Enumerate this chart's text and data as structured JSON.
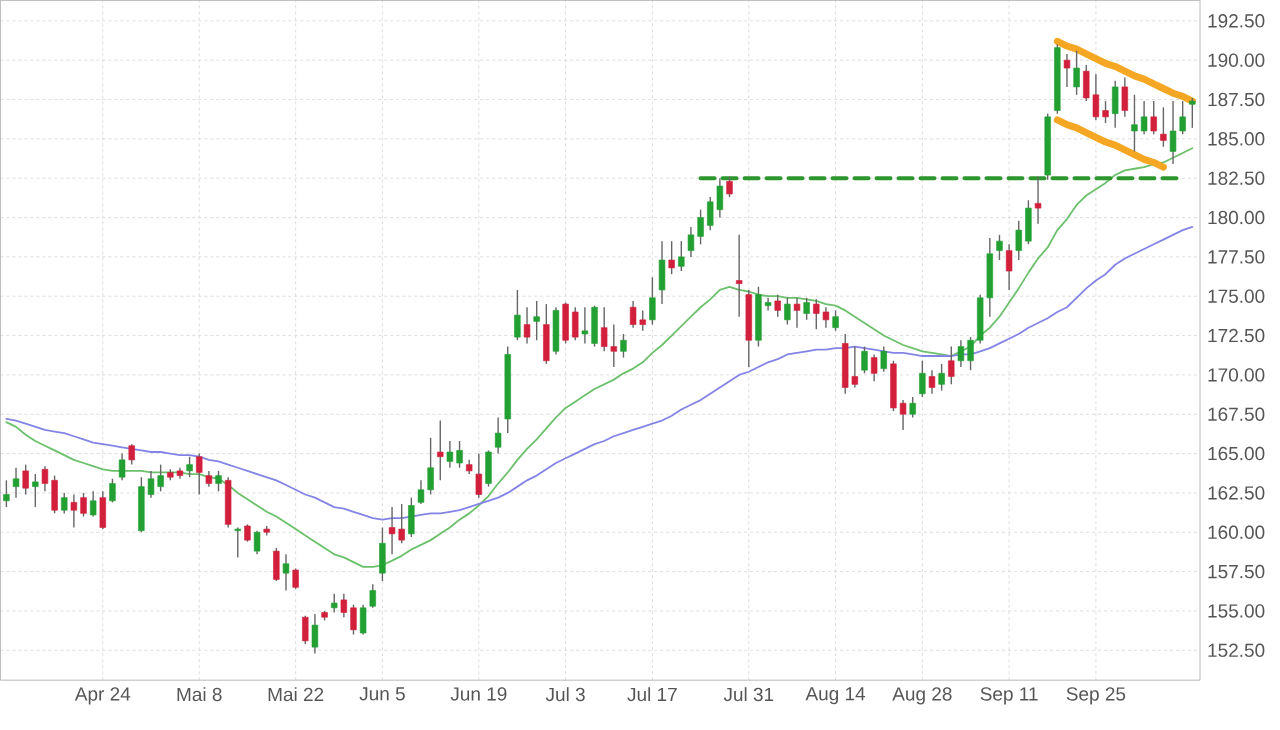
{
  "chart_data": {
    "type": "candlestick",
    "categories": [
      null,
      null,
      null,
      null,
      null,
      null,
      null,
      null,
      null,
      null,
      "Apr 24",
      null,
      null,
      null,
      null,
      null,
      null,
      null,
      null,
      null,
      "Mai 8",
      null,
      null,
      null,
      null,
      null,
      null,
      null,
      null,
      null,
      "Mai 22",
      null,
      null,
      null,
      null,
      null,
      null,
      null,
      null,
      "Jun 5",
      null,
      null,
      null,
      null,
      null,
      null,
      null,
      null,
      null,
      "Jun 19",
      null,
      null,
      null,
      null,
      null,
      null,
      null,
      null,
      "Jul 3",
      null,
      null,
      null,
      null,
      null,
      null,
      null,
      null,
      "Jul 17",
      null,
      null,
      null,
      null,
      null,
      null,
      null,
      null,
      null,
      "Jul 31",
      null,
      null,
      null,
      null,
      null,
      null,
      null,
      null,
      "Aug 14",
      null,
      null,
      null,
      null,
      null,
      null,
      null,
      null,
      "Aug 28",
      null,
      null,
      null,
      null,
      null,
      null,
      null,
      null,
      "Sep 11",
      null,
      null,
      null,
      null,
      null,
      null,
      null,
      null,
      "Sep 25",
      null,
      null,
      null,
      null,
      null,
      null,
      null,
      null,
      null,
      null
    ],
    "ohlc": [
      [
        162.0,
        163.3,
        161.6,
        162.4
      ],
      [
        162.9,
        164.1,
        162.2,
        163.4
      ],
      [
        163.9,
        164.3,
        162.4,
        162.8
      ],
      [
        162.9,
        163.7,
        161.6,
        163.2
      ],
      [
        164.0,
        164.2,
        162.6,
        163.1
      ],
      [
        163.3,
        163.6,
        161.2,
        161.4
      ],
      [
        161.4,
        162.5,
        161.2,
        162.2
      ],
      [
        161.9,
        162.4,
        160.3,
        161.4
      ],
      [
        162.2,
        162.5,
        161.0,
        161.2
      ],
      [
        161.1,
        162.6,
        161.0,
        162.0
      ],
      [
        162.2,
        162.6,
        160.2,
        160.3
      ],
      [
        162.0,
        163.4,
        161.9,
        163.1
      ],
      [
        163.5,
        165.0,
        163.3,
        164.6
      ],
      [
        165.5,
        165.6,
        164.3,
        164.6
      ],
      [
        160.1,
        163.5,
        160.0,
        162.9
      ],
      [
        162.4,
        163.9,
        162.2,
        163.4
      ],
      [
        162.9,
        164.3,
        162.6,
        163.6
      ],
      [
        163.8,
        164.0,
        163.3,
        163.5
      ],
      [
        163.9,
        164.1,
        163.4,
        163.6
      ],
      [
        163.9,
        164.8,
        163.5,
        164.3
      ],
      [
        164.8,
        165.0,
        162.4,
        163.8
      ],
      [
        163.6,
        163.9,
        162.9,
        163.1
      ],
      [
        163.1,
        163.9,
        162.6,
        163.6
      ],
      [
        163.3,
        163.5,
        160.3,
        160.5
      ],
      [
        160.1,
        160.3,
        158.4,
        160.2
      ],
      [
        160.4,
        160.5,
        159.4,
        159.5
      ],
      [
        158.8,
        160.1,
        158.6,
        160.0
      ],
      [
        160.2,
        160.4,
        159.8,
        160.0
      ],
      [
        158.8,
        159.0,
        156.9,
        157.0
      ],
      [
        157.4,
        158.6,
        156.3,
        158.0
      ],
      [
        157.6,
        157.7,
        156.4,
        156.5
      ],
      [
        154.6,
        154.7,
        152.9,
        153.1
      ],
      [
        152.7,
        154.8,
        152.3,
        154.1
      ],
      [
        154.9,
        155.0,
        154.4,
        154.6
      ],
      [
        155.2,
        156.1,
        154.9,
        155.5
      ],
      [
        155.7,
        156.1,
        154.6,
        154.9
      ],
      [
        155.2,
        155.4,
        153.5,
        153.8
      ],
      [
        153.6,
        155.4,
        153.5,
        155.2
      ],
      [
        155.3,
        156.7,
        155.2,
        156.3
      ],
      [
        157.4,
        160.3,
        156.9,
        159.3
      ],
      [
        160.3,
        161.6,
        158.6,
        159.9
      ],
      [
        160.2,
        161.8,
        159.3,
        159.5
      ],
      [
        159.9,
        162.2,
        159.7,
        161.7
      ],
      [
        161.9,
        163.3,
        161.8,
        162.7
      ],
      [
        162.7,
        166.0,
        162.4,
        164.1
      ],
      [
        165.1,
        167.1,
        163.3,
        164.8
      ],
      [
        164.5,
        165.8,
        164.1,
        165.1
      ],
      [
        164.4,
        165.8,
        164.1,
        165.2
      ],
      [
        164.3,
        164.6,
        163.7,
        163.9
      ],
      [
        163.7,
        165.0,
        162.2,
        162.4
      ],
      [
        163.1,
        165.2,
        162.9,
        165.1
      ],
      [
        165.4,
        167.3,
        165.0,
        166.3
      ],
      [
        167.2,
        171.8,
        166.3,
        171.3
      ],
      [
        172.4,
        175.4,
        172.2,
        173.8
      ],
      [
        173.2,
        174.3,
        172.0,
        172.4
      ],
      [
        173.4,
        174.7,
        172.2,
        173.7
      ],
      [
        173.2,
        174.5,
        170.7,
        170.9
      ],
      [
        171.5,
        174.3,
        171.3,
        174.1
      ],
      [
        174.5,
        174.6,
        172.0,
        172.2
      ],
      [
        174.0,
        174.3,
        172.2,
        172.4
      ],
      [
        172.6,
        174.3,
        172.0,
        172.8
      ],
      [
        172.0,
        174.4,
        171.8,
        174.3
      ],
      [
        173.0,
        174.3,
        171.5,
        171.8
      ],
      [
        171.8,
        173.2,
        170.5,
        171.5
      ],
      [
        171.5,
        172.6,
        171.1,
        172.2
      ],
      [
        174.3,
        174.7,
        173.0,
        173.2
      ],
      [
        173.5,
        174.1,
        172.8,
        173.2
      ],
      [
        173.5,
        176.2,
        173.2,
        174.9
      ],
      [
        175.4,
        178.5,
        174.5,
        177.3
      ],
      [
        177.3,
        178.5,
        176.4,
        176.8
      ],
      [
        176.9,
        178.5,
        176.6,
        177.5
      ],
      [
        177.9,
        179.4,
        177.5,
        178.9
      ],
      [
        178.8,
        180.5,
        178.3,
        180.0
      ],
      [
        179.5,
        181.3,
        179.2,
        181.0
      ],
      [
        180.5,
        182.5,
        180.0,
        182.0
      ],
      [
        182.3,
        182.6,
        181.3,
        181.5
      ],
      [
        176.0,
        178.9,
        173.7,
        175.8
      ],
      [
        175.1,
        175.4,
        170.5,
        172.2
      ],
      [
        172.2,
        175.6,
        171.8,
        175.1
      ],
      [
        174.4,
        174.9,
        174.1,
        174.6
      ],
      [
        174.7,
        175.1,
        173.7,
        174.1
      ],
      [
        173.5,
        174.9,
        173.2,
        174.5
      ],
      [
        174.5,
        174.9,
        173.0,
        174.1
      ],
      [
        173.9,
        174.9,
        173.5,
        174.6
      ],
      [
        174.5,
        174.8,
        172.9,
        173.9
      ],
      [
        174.0,
        174.3,
        173.0,
        173.5
      ],
      [
        173.0,
        174.1,
        172.8,
        173.7
      ],
      [
        172.0,
        172.6,
        168.8,
        169.2
      ],
      [
        169.9,
        171.8,
        169.2,
        169.4
      ],
      [
        170.3,
        171.8,
        170.1,
        171.5
      ],
      [
        171.1,
        171.3,
        169.6,
        170.1
      ],
      [
        170.4,
        171.8,
        170.2,
        171.5
      ],
      [
        170.7,
        170.9,
        167.7,
        167.9
      ],
      [
        168.2,
        168.4,
        166.5,
        167.5
      ],
      [
        167.5,
        168.6,
        167.3,
        168.2
      ],
      [
        168.8,
        170.9,
        168.6,
        170.1
      ],
      [
        169.9,
        170.3,
        168.8,
        169.2
      ],
      [
        169.4,
        170.7,
        169.0,
        170.1
      ],
      [
        170.9,
        171.8,
        169.4,
        169.9
      ],
      [
        170.9,
        172.2,
        170.5,
        171.8
      ],
      [
        170.9,
        172.4,
        170.3,
        172.2
      ],
      [
        172.2,
        175.1,
        172.0,
        174.9
      ],
      [
        174.9,
        178.7,
        173.7,
        177.7
      ],
      [
        177.9,
        178.9,
        177.3,
        178.5
      ],
      [
        177.9,
        178.3,
        175.4,
        176.6
      ],
      [
        177.9,
        179.8,
        177.3,
        179.2
      ],
      [
        178.5,
        181.1,
        178.3,
        180.6
      ],
      [
        180.9,
        182.6,
        179.6,
        180.6
      ],
      [
        182.7,
        186.6,
        182.4,
        186.4
      ],
      [
        186.8,
        191.0,
        186.6,
        190.8
      ],
      [
        190.0,
        190.4,
        188.3,
        189.5
      ],
      [
        188.3,
        190.6,
        187.8,
        189.5
      ],
      [
        189.3,
        189.7,
        187.4,
        187.6
      ],
      [
        187.8,
        189.1,
        186.2,
        186.4
      ],
      [
        186.8,
        187.4,
        186.0,
        186.4
      ],
      [
        186.6,
        188.7,
        185.7,
        188.3
      ],
      [
        188.3,
        188.9,
        186.4,
        186.8
      ],
      [
        185.5,
        187.8,
        184.2,
        185.9
      ],
      [
        185.5,
        187.4,
        185.3,
        186.4
      ],
      [
        186.4,
        187.4,
        185.3,
        185.5
      ],
      [
        185.3,
        187.0,
        184.5,
        184.9
      ],
      [
        184.2,
        187.4,
        183.4,
        185.5
      ],
      [
        185.5,
        187.4,
        185.3,
        186.4
      ],
      [
        187.2,
        187.6,
        185.7,
        187.4
      ]
    ],
    "series": [
      {
        "type": "line",
        "color": "#6cc06c",
        "values": [
          167.0,
          166.7,
          166.2,
          165.8,
          165.5,
          165.2,
          164.9,
          164.6,
          164.4,
          164.2,
          164.0,
          163.9,
          163.9,
          163.9,
          163.9,
          163.8,
          163.8,
          163.8,
          163.8,
          163.7,
          163.7,
          163.5,
          163.4,
          163.0,
          162.5,
          162.1,
          161.7,
          161.3,
          161.0,
          160.6,
          160.2,
          159.8,
          159.4,
          159.0,
          158.6,
          158.4,
          158.1,
          157.8,
          157.8,
          157.9,
          158.2,
          158.5,
          158.9,
          159.2,
          159.5,
          159.9,
          160.3,
          160.8,
          161.2,
          161.7,
          162.3,
          163.1,
          163.8,
          164.6,
          165.3,
          165.9,
          166.6,
          167.3,
          167.9,
          168.3,
          168.7,
          169.1,
          169.4,
          169.7,
          170.1,
          170.4,
          170.8,
          171.4,
          171.9,
          172.5,
          173.1,
          173.7,
          174.3,
          174.8,
          175.4,
          175.6,
          175.4,
          175.3,
          175.1,
          175.0,
          175.0,
          174.9,
          174.9,
          174.8,
          174.7,
          174.5,
          174.4,
          174.1,
          173.7,
          173.3,
          172.9,
          172.5,
          172.2,
          171.9,
          171.7,
          171.5,
          171.4,
          171.3,
          171.2,
          171.5,
          171.8,
          172.5,
          173.0,
          173.7,
          174.6,
          175.5,
          176.5,
          177.4,
          178.1,
          179.2,
          179.9,
          180.8,
          181.4,
          181.8,
          182.2,
          182.7,
          183.0,
          183.1,
          183.2,
          183.4,
          183.5,
          183.8,
          184.1,
          184.4
        ]
      },
      {
        "type": "line",
        "color": "#8484e6",
        "values": [
          167.2,
          167.1,
          166.9,
          166.7,
          166.5,
          166.4,
          166.3,
          166.1,
          165.9,
          165.7,
          165.6,
          165.5,
          165.4,
          165.3,
          165.2,
          165.1,
          165.1,
          165.0,
          164.9,
          164.9,
          164.8,
          164.6,
          164.5,
          164.3,
          164.1,
          163.9,
          163.7,
          163.5,
          163.3,
          163.0,
          162.7,
          162.4,
          162.2,
          161.9,
          161.6,
          161.5,
          161.3,
          161.1,
          160.9,
          160.8,
          160.9,
          160.9,
          161.0,
          161.1,
          161.2,
          161.2,
          161.3,
          161.4,
          161.6,
          161.8,
          162.0,
          162.2,
          162.5,
          162.9,
          163.3,
          163.6,
          164.0,
          164.4,
          164.7,
          165.0,
          165.3,
          165.6,
          165.8,
          166.1,
          166.3,
          166.5,
          166.7,
          166.9,
          167.1,
          167.4,
          167.8,
          168.1,
          168.4,
          168.8,
          169.2,
          169.6,
          170.0,
          170.2,
          170.5,
          170.8,
          171.0,
          171.3,
          171.4,
          171.5,
          171.6,
          171.6,
          171.7,
          171.7,
          171.8,
          171.7,
          171.6,
          171.5,
          171.4,
          171.4,
          171.3,
          171.2,
          171.2,
          171.2,
          171.2,
          171.3,
          171.3,
          171.5,
          171.7,
          172.0,
          172.3,
          172.6,
          173.0,
          173.3,
          173.6,
          174.0,
          174.3,
          174.9,
          175.5,
          176.0,
          176.4,
          177.0,
          177.4,
          177.7,
          178.0,
          178.3,
          178.6,
          178.9,
          179.2,
          179.4
        ]
      },
      {
        "type": "line",
        "color": "#2e962e",
        "line_style": "dashed",
        "values": [
          null,
          null,
          null,
          null,
          null,
          null,
          null,
          null,
          null,
          null,
          null,
          null,
          null,
          null,
          null,
          null,
          null,
          null,
          null,
          null,
          null,
          null,
          null,
          null,
          null,
          null,
          null,
          null,
          null,
          null,
          null,
          null,
          null,
          null,
          null,
          null,
          null,
          null,
          null,
          null,
          null,
          null,
          null,
          null,
          null,
          null,
          null,
          null,
          null,
          null,
          null,
          null,
          null,
          null,
          null,
          null,
          null,
          null,
          null,
          null,
          null,
          null,
          null,
          null,
          null,
          null,
          null,
          null,
          null,
          null,
          null,
          null,
          182.5,
          182.5,
          182.5,
          182.5,
          182.5,
          182.5,
          182.5,
          182.5,
          182.5,
          182.5,
          182.5,
          182.5,
          182.5,
          182.5,
          182.5,
          182.5,
          182.5,
          182.5,
          182.5,
          182.5,
          182.5,
          182.5,
          182.5,
          182.5,
          182.5,
          182.5,
          182.5,
          182.5,
          182.5,
          182.5,
          182.5,
          182.5,
          182.5,
          182.5,
          182.5,
          182.5,
          182.5,
          182.5,
          182.5,
          182.5,
          182.5,
          182.5,
          182.5,
          182.5,
          182.5,
          182.5,
          182.5,
          182.5,
          182.5,
          182.5,
          182.5,
          null
        ]
      },
      {
        "type": "line",
        "color": "#f5a623",
        "values": [
          null,
          null,
          null,
          null,
          null,
          null,
          null,
          null,
          null,
          null,
          null,
          null,
          null,
          null,
          null,
          null,
          null,
          null,
          null,
          null,
          null,
          null,
          null,
          null,
          null,
          null,
          null,
          null,
          null,
          null,
          null,
          null,
          null,
          null,
          null,
          null,
          null,
          null,
          null,
          null,
          null,
          null,
          null,
          null,
          null,
          null,
          null,
          null,
          null,
          null,
          null,
          null,
          null,
          null,
          null,
          null,
          null,
          null,
          null,
          null,
          null,
          null,
          null,
          null,
          null,
          null,
          null,
          null,
          null,
          null,
          null,
          null,
          null,
          null,
          null,
          null,
          null,
          null,
          null,
          null,
          null,
          null,
          null,
          null,
          null,
          null,
          null,
          null,
          null,
          null,
          null,
          null,
          null,
          null,
          null,
          null,
          null,
          null,
          null,
          null,
          null,
          null,
          null,
          null,
          null,
          null,
          null,
          null,
          null,
          191.2,
          190.9,
          190.7,
          190.4,
          190.1,
          189.8,
          189.6,
          189.3,
          189.0,
          188.8,
          188.5,
          188.2,
          187.9,
          187.7,
          187.4
        ]
      },
      {
        "type": "line",
        "color": "#f5a623",
        "values": [
          null,
          null,
          null,
          null,
          null,
          null,
          null,
          null,
          null,
          null,
          null,
          null,
          null,
          null,
          null,
          null,
          null,
          null,
          null,
          null,
          null,
          null,
          null,
          null,
          null,
          null,
          null,
          null,
          null,
          null,
          null,
          null,
          null,
          null,
          null,
          null,
          null,
          null,
          null,
          null,
          null,
          null,
          null,
          null,
          null,
          null,
          null,
          null,
          null,
          null,
          null,
          null,
          null,
          null,
          null,
          null,
          null,
          null,
          null,
          null,
          null,
          null,
          null,
          null,
          null,
          null,
          null,
          null,
          null,
          null,
          null,
          null,
          null,
          null,
          null,
          null,
          null,
          null,
          null,
          null,
          null,
          null,
          null,
          null,
          null,
          null,
          null,
          null,
          null,
          null,
          null,
          null,
          null,
          null,
          null,
          null,
          null,
          null,
          null,
          null,
          null,
          null,
          null,
          null,
          null,
          null,
          null,
          null,
          null,
          186.2,
          185.9,
          185.7,
          185.4,
          185.1,
          184.8,
          184.6,
          184.3,
          184.0,
          183.7,
          183.5,
          183.2,
          null,
          null,
          null
        ]
      }
    ],
    "ylim": [
      150.6,
      193.8
    ],
    "yticks": [
      {
        "value": 152.5,
        "label": "152.50"
      },
      {
        "value": 155,
        "label": "155.00"
      },
      {
        "value": 157.5,
        "label": "157.50"
      },
      {
        "value": 160,
        "label": "160.00"
      },
      {
        "value": 162.5,
        "label": "162.50"
      },
      {
        "value": 165,
        "label": "165.00"
      },
      {
        "value": 167.5,
        "label": "167.50"
      },
      {
        "value": 170,
        "label": "170.00"
      },
      {
        "value": 172.5,
        "label": "172.50"
      },
      {
        "value": 175,
        "label": "175.00"
      },
      {
        "value": 177.5,
        "label": "177.50"
      },
      {
        "value": 180,
        "label": "180.00"
      },
      {
        "value": 182.5,
        "label": "182.50"
      },
      {
        "value": 185,
        "label": "185.00"
      },
      {
        "value": 187.5,
        "label": "187.50"
      },
      {
        "value": 190,
        "label": "190.00"
      },
      {
        "value": 192.5,
        "label": "192.50"
      }
    ],
    "grid": true,
    "marker": "none"
  }
}
